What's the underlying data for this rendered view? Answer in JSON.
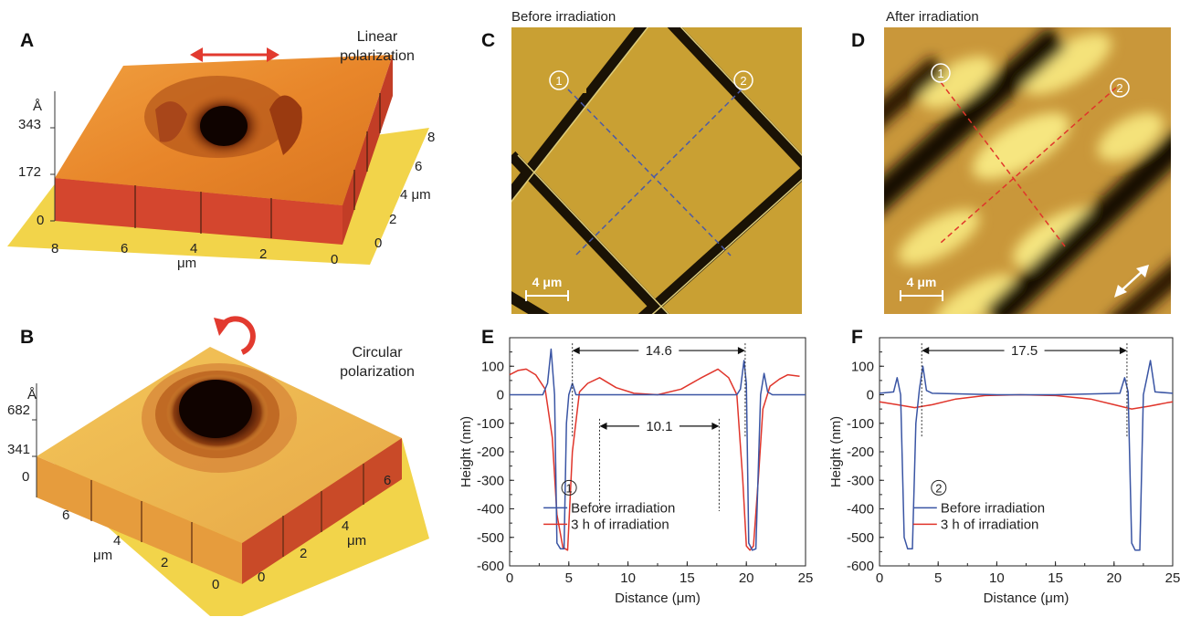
{
  "panels": {
    "A": {
      "letter": "A",
      "caption_line1": "Linear",
      "caption_line2": "polarization",
      "z_unit": "Å",
      "z_ticks": [
        "343",
        "172",
        "0"
      ],
      "x_ticks": [
        "8",
        "6",
        "4",
        "2",
        "0"
      ],
      "x_unit": "μm",
      "y_ticks": [
        "8",
        "6",
        "4 μm",
        "2",
        "0"
      ]
    },
    "B": {
      "letter": "B",
      "caption_line1": "Circular",
      "caption_line2": "polarization",
      "z_unit": "Å",
      "z_ticks": [
        "682",
        "341",
        "0"
      ],
      "x_ticks": [
        "6",
        "4",
        "2",
        "0"
      ],
      "x_unit": "μm",
      "y_ticks": [
        "6",
        "4",
        "μm",
        "2",
        "0"
      ]
    },
    "C": {
      "letter": "C",
      "title": "Before irradiation",
      "marker1": "1",
      "marker2": "2",
      "scalebar": "4 μm"
    },
    "D": {
      "letter": "D",
      "title": "After irradiation",
      "marker1": "1",
      "marker2": "2",
      "scalebar": "4 μm"
    },
    "E": {
      "letter": "E"
    },
    "F": {
      "letter": "F"
    }
  },
  "colors": {
    "before": "#3a55a4",
    "after": "#e0352b",
    "afm_orange": "#e8862a",
    "afm_gold": "#c9a033",
    "arrow_red": "#e23a2f"
  },
  "chart_data": [
    {
      "type": "line",
      "panel": "E",
      "xlabel": "Distance (μm)",
      "ylabel": "Height (nm)",
      "xlim": [
        0,
        25
      ],
      "ylim": [
        -600,
        200
      ],
      "xticks": [
        "0",
        "5",
        "10",
        "15",
        "20",
        "25"
      ],
      "yticks": [
        "100",
        "0",
        "-100",
        "-200",
        "-300",
        "-400",
        "-500",
        "-600"
      ],
      "legend_marker": "1",
      "annotations": [
        {
          "label": "14.6",
          "x_start": 5.3,
          "x_end": 19.9,
          "y": 155
        },
        {
          "label": "10.1",
          "x_start": 7.6,
          "x_end": 17.7,
          "y": -110
        }
      ],
      "series": [
        {
          "name": "Before irradiation",
          "x": [
            0,
            2.8,
            3.2,
            3.5,
            3.8,
            4.0,
            4.3,
            4.6,
            4.8,
            5.0,
            5.3,
            5.6,
            6.0,
            10,
            15,
            19.2,
            19.5,
            19.8,
            20.0,
            20.2,
            20.5,
            20.8,
            21.2,
            21.5,
            21.8,
            22.2,
            25
          ],
          "y": [
            0,
            0,
            40,
            160,
            0,
            -520,
            -540,
            -540,
            -100,
            0,
            40,
            0,
            0,
            0,
            0,
            0,
            20,
            120,
            40,
            -520,
            -545,
            -540,
            0,
            75,
            10,
            0,
            0
          ]
        },
        {
          "name": "3 h of irradiation",
          "x": [
            0,
            0.7,
            1.4,
            2.2,
            3.0,
            3.6,
            4.0,
            4.5,
            4.9,
            5.3,
            5.9,
            6.6,
            7.6,
            9,
            10.5,
            12.5,
            14.5,
            16.2,
            17.6,
            18.5,
            19.2,
            19.7,
            20.0,
            20.3,
            20.6,
            21.0,
            21.4,
            22.0,
            22.8,
            23.5,
            24.5
          ],
          "y": [
            70,
            85,
            90,
            70,
            20,
            -150,
            -420,
            -535,
            -545,
            -200,
            10,
            40,
            60,
            25,
            5,
            0,
            20,
            60,
            90,
            60,
            0,
            -300,
            -530,
            -545,
            -530,
            -300,
            -50,
            30,
            55,
            70,
            65
          ]
        }
      ]
    },
    {
      "type": "line",
      "panel": "F",
      "xlabel": "Distance (μm)",
      "ylabel": "Height (nm)",
      "xlim": [
        0,
        25
      ],
      "ylim": [
        -600,
        200
      ],
      "xticks": [
        "0",
        "5",
        "10",
        "15",
        "20",
        "25"
      ],
      "yticks": [
        "100",
        "0",
        "-100",
        "-200",
        "-300",
        "-400",
        "-500",
        "-600"
      ],
      "legend_marker": "2",
      "annotations": [
        {
          "label": "17.5",
          "x_start": 3.6,
          "x_end": 21.1,
          "y": 155
        }
      ],
      "series": [
        {
          "name": "Before irradiation",
          "x": [
            0,
            1.2,
            1.5,
            1.8,
            2.1,
            2.4,
            2.8,
            3.1,
            3.4,
            3.7,
            4.0,
            4.5,
            10,
            15,
            20.5,
            20.9,
            21.2,
            21.5,
            21.8,
            22.2,
            22.5,
            22.8,
            23.1,
            23.5,
            25
          ],
          "y": [
            5,
            10,
            60,
            0,
            -500,
            -540,
            -540,
            -100,
            20,
            100,
            15,
            5,
            0,
            0,
            5,
            60,
            10,
            -520,
            -545,
            -545,
            0,
            60,
            120,
            10,
            5
          ]
        },
        {
          "name": "3 h of irradiation",
          "x": [
            0,
            1.5,
            3.0,
            4.5,
            6.5,
            9,
            12,
            15,
            18,
            20,
            21.5,
            23,
            24.5,
            25
          ],
          "y": [
            -25,
            -35,
            -45,
            -35,
            -15,
            -3,
            0,
            -3,
            -15,
            -35,
            -50,
            -40,
            -28,
            -25
          ]
        }
      ]
    }
  ]
}
